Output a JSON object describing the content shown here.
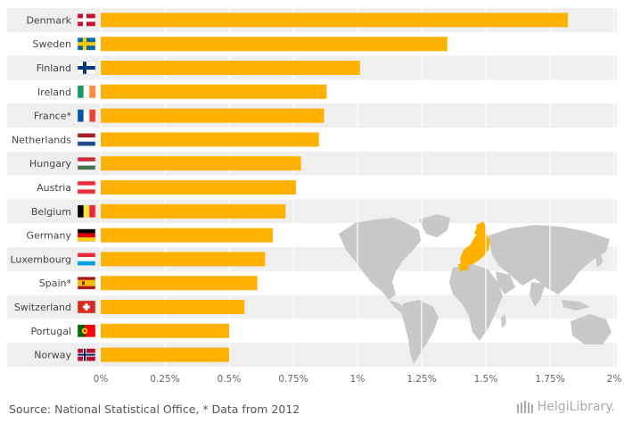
{
  "chart_data": {
    "type": "bar",
    "orientation": "horizontal",
    "categories": [
      "Denmark",
      "Sweden",
      "Finland",
      "Ireland",
      "France*",
      "Netherlands",
      "Hungary",
      "Austria",
      "Belgium",
      "Germany",
      "Luxembourg",
      "Spain*",
      "Switzerland",
      "Portugal",
      "Norway"
    ],
    "values": [
      1.82,
      1.35,
      1.01,
      0.88,
      0.87,
      0.85,
      0.78,
      0.76,
      0.72,
      0.67,
      0.64,
      0.61,
      0.56,
      0.5,
      0.5
    ],
    "xlim": [
      0,
      2
    ],
    "ticks": [
      "0%",
      "0.25%",
      "0.5%",
      "0.75%",
      "1%",
      "1.25%",
      "1.5%",
      "1.75%",
      "2%"
    ],
    "grid": true,
    "bar_color": "#FFB100",
    "title": "",
    "xlabel": "",
    "ylabel": ""
  },
  "flags": [
    {
      "type": "nordic",
      "field": "#C8102E",
      "cross": "#FFFFFF",
      "inner": null
    },
    {
      "type": "nordic",
      "field": "#006AA7",
      "cross": "#FECC00",
      "inner": null
    },
    {
      "type": "nordic",
      "field": "#FFFFFF",
      "cross": "#003580",
      "inner": null
    },
    {
      "type": "vertical",
      "colors": [
        "#169B62",
        "#FFFFFF",
        "#FF883E"
      ]
    },
    {
      "type": "vertical",
      "colors": [
        "#0055A4",
        "#FFFFFF",
        "#EF4135"
      ]
    },
    {
      "type": "horizontal",
      "colors": [
        "#AE1C28",
        "#FFFFFF",
        "#21468B"
      ]
    },
    {
      "type": "horizontal",
      "colors": [
        "#CE2939",
        "#FFFFFF",
        "#477050"
      ]
    },
    {
      "type": "horizontal",
      "colors": [
        "#ED2939",
        "#FFFFFF",
        "#ED2939"
      ]
    },
    {
      "type": "vertical",
      "colors": [
        "#000000",
        "#FAE042",
        "#ED2939"
      ]
    },
    {
      "type": "horizontal",
      "colors": [
        "#000000",
        "#DD0000",
        "#FFCE00"
      ]
    },
    {
      "type": "horizontal",
      "colors": [
        "#ED2939",
        "#FFFFFF",
        "#00A1DE"
      ]
    },
    {
      "type": "spain",
      "colors": [
        "#AA151B",
        "#F1BF00",
        "#AA151B"
      ]
    },
    {
      "type": "swiss",
      "field": "#D52B1E",
      "cross": "#FFFFFF"
    },
    {
      "type": "portugal",
      "colors": [
        "#006600",
        "#FF0000"
      ]
    },
    {
      "type": "nordic",
      "field": "#BA0C2F",
      "cross": "#FFFFFF",
      "inner": "#00205B"
    }
  ],
  "footer": {
    "source": "Source: National Statistical Office, * Data from 2012",
    "logo": "HelgiLibrary."
  }
}
